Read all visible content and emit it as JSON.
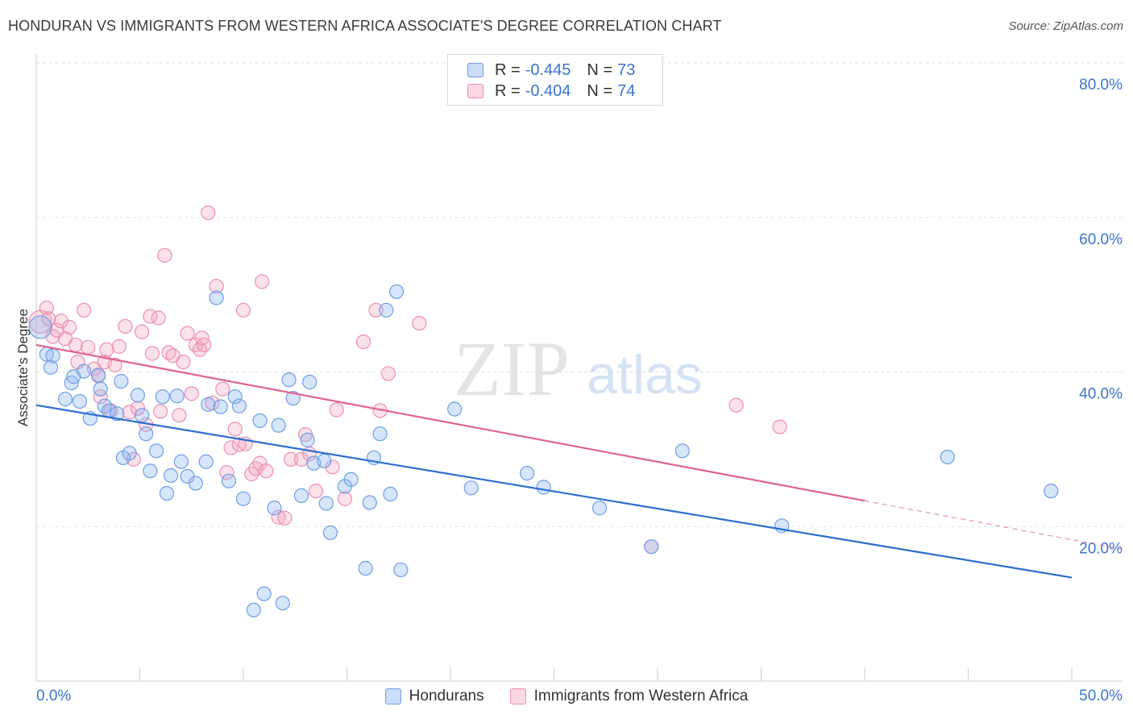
{
  "title": "HONDURAN VS IMMIGRANTS FROM WESTERN AFRICA ASSOCIATE'S DEGREE CORRELATION CHART",
  "source": "Source: ZipAtlas.com",
  "watermark": {
    "zip": "ZIP",
    "atlas": "atlas"
  },
  "legend": {
    "rows": [
      {
        "r_label": "R =",
        "r_value": "-0.445",
        "n_label": "N =",
        "n_value": "73",
        "color": "#8ab4f0"
      },
      {
        "r_label": "R =",
        "r_value": "-0.404",
        "n_label": "N =",
        "n_value": "74",
        "color": "#f4a9c0"
      }
    ]
  },
  "bottom_legend": [
    {
      "label": "Hondurans",
      "color": "#8ab4f0"
    },
    {
      "label": "Immigrants from Western Africa",
      "color": "#f4a9c0"
    }
  ],
  "colors": {
    "blue_fill": "rgba(138,180,240,0.35)",
    "blue_stroke": "#6d9ee6",
    "blue_line": "#2a6fd3",
    "pink_fill": "rgba(244,169,192,0.35)",
    "pink_stroke": "#ec8fae",
    "pink_line": "#e0628f",
    "axis_text": "#3a74d0",
    "grid": "#e2e2e2"
  },
  "chart_data": {
    "type": "scatter",
    "title": "HONDURAN VS IMMIGRANTS FROM WESTERN AFRICA ASSOCIATE'S DEGREE CORRELATION CHART",
    "xlabel": "",
    "ylabel": "Associate's Degree",
    "xlim": [
      0,
      50
    ],
    "ylim": [
      0,
      80
    ],
    "x_tick_labels": [
      "0.0%",
      "50.0%"
    ],
    "y_ticks": [
      20,
      40,
      60,
      80
    ],
    "y_tick_labels": [
      "20.0%",
      "40.0%",
      "60.0%",
      "80.0%"
    ],
    "x_minor_ticks": [
      0,
      5,
      10,
      15,
      20,
      25,
      30,
      35,
      40,
      45,
      50
    ],
    "grid": true,
    "legend_position": "top-center",
    "series": [
      {
        "name": "Hondurans",
        "trend": {
          "x0": 0,
          "y0": 35.7,
          "x1": 50,
          "y1": 13.4,
          "dashed_from": null
        },
        "points": [
          [
            0.2,
            45.8
          ],
          [
            0.5,
            42.3
          ],
          [
            0.7,
            40.6
          ],
          [
            0.8,
            42.1
          ],
          [
            1.4,
            36.5
          ],
          [
            1.7,
            38.6
          ],
          [
            1.8,
            39.4
          ],
          [
            2.1,
            36.2
          ],
          [
            2.3,
            40.1
          ],
          [
            2.6,
            34.0
          ],
          [
            3.0,
            39.6
          ],
          [
            3.1,
            37.8
          ],
          [
            3.3,
            35.6
          ],
          [
            3.5,
            35.0
          ],
          [
            3.9,
            34.6
          ],
          [
            4.1,
            38.8
          ],
          [
            4.2,
            28.9
          ],
          [
            4.5,
            29.5
          ],
          [
            4.9,
            37.0
          ],
          [
            5.1,
            34.4
          ],
          [
            5.3,
            32.0
          ],
          [
            5.5,
            27.2
          ],
          [
            5.8,
            29.8
          ],
          [
            6.1,
            36.8
          ],
          [
            6.3,
            24.3
          ],
          [
            6.5,
            26.6
          ],
          [
            6.8,
            36.9
          ],
          [
            7.0,
            28.4
          ],
          [
            7.3,
            26.5
          ],
          [
            7.7,
            25.6
          ],
          [
            8.2,
            28.4
          ],
          [
            8.3,
            35.8
          ],
          [
            8.7,
            49.6
          ],
          [
            8.9,
            35.5
          ],
          [
            9.3,
            25.9
          ],
          [
            9.6,
            36.8
          ],
          [
            9.8,
            35.6
          ],
          [
            10.0,
            23.6
          ],
          [
            10.5,
            9.2
          ],
          [
            10.8,
            33.7
          ],
          [
            11.0,
            11.3
          ],
          [
            11.5,
            22.4
          ],
          [
            11.7,
            33.1
          ],
          [
            11.9,
            10.1
          ],
          [
            12.2,
            39.0
          ],
          [
            12.4,
            36.6
          ],
          [
            12.8,
            24.0
          ],
          [
            13.1,
            31.2
          ],
          [
            13.2,
            38.7
          ],
          [
            13.4,
            28.2
          ],
          [
            13.9,
            28.5
          ],
          [
            14.0,
            23.0
          ],
          [
            14.2,
            19.2
          ],
          [
            14.9,
            25.2
          ],
          [
            15.2,
            26.1
          ],
          [
            15.9,
            14.6
          ],
          [
            16.1,
            23.1
          ],
          [
            16.3,
            28.9
          ],
          [
            16.6,
            32.0
          ],
          [
            16.9,
            48.0
          ],
          [
            17.1,
            24.2
          ],
          [
            17.4,
            50.4
          ],
          [
            17.6,
            14.4
          ],
          [
            20.2,
            35.2
          ],
          [
            21.0,
            25.0
          ],
          [
            23.7,
            26.9
          ],
          [
            24.5,
            25.1
          ],
          [
            27.2,
            22.4
          ],
          [
            29.7,
            17.4
          ],
          [
            31.2,
            29.8
          ],
          [
            36.0,
            20.1
          ],
          [
            44.0,
            29.0
          ],
          [
            49.0,
            24.6
          ]
        ]
      },
      {
        "name": "Immigrants from Western Africa",
        "trend": {
          "x0": 0,
          "y0": 43.5,
          "x1": 50,
          "y1": 18.3,
          "dashed_from": 40.0
        },
        "points": [
          [
            0.2,
            46.5
          ],
          [
            0.5,
            48.3
          ],
          [
            0.6,
            46.9
          ],
          [
            0.8,
            44.6
          ],
          [
            1.0,
            45.4
          ],
          [
            1.2,
            46.6
          ],
          [
            1.4,
            44.3
          ],
          [
            1.6,
            45.8
          ],
          [
            1.9,
            43.5
          ],
          [
            2.0,
            41.3
          ],
          [
            2.3,
            48.0
          ],
          [
            2.5,
            43.2
          ],
          [
            2.8,
            40.4
          ],
          [
            3.0,
            39.5
          ],
          [
            3.1,
            36.8
          ],
          [
            3.3,
            41.3
          ],
          [
            3.4,
            42.9
          ],
          [
            3.6,
            35.0
          ],
          [
            3.8,
            40.9
          ],
          [
            4.0,
            43.3
          ],
          [
            4.3,
            45.9
          ],
          [
            4.5,
            34.8
          ],
          [
            4.7,
            28.7
          ],
          [
            4.9,
            35.3
          ],
          [
            5.1,
            45.2
          ],
          [
            5.3,
            33.2
          ],
          [
            5.5,
            47.2
          ],
          [
            5.6,
            42.4
          ],
          [
            5.9,
            47.0
          ],
          [
            6.0,
            34.9
          ],
          [
            6.2,
            55.1
          ],
          [
            6.4,
            42.5
          ],
          [
            6.6,
            42.1
          ],
          [
            6.9,
            34.4
          ],
          [
            7.1,
            41.3
          ],
          [
            7.3,
            45.0
          ],
          [
            7.5,
            37.2
          ],
          [
            7.7,
            43.5
          ],
          [
            7.9,
            42.9
          ],
          [
            8.0,
            44.4
          ],
          [
            8.1,
            43.5
          ],
          [
            8.3,
            60.6
          ],
          [
            8.5,
            36.0
          ],
          [
            8.7,
            51.1
          ],
          [
            9.0,
            37.8
          ],
          [
            9.2,
            27.0
          ],
          [
            9.4,
            30.2
          ],
          [
            9.6,
            32.6
          ],
          [
            9.8,
            30.6
          ],
          [
            10.0,
            48.0
          ],
          [
            10.1,
            30.7
          ],
          [
            10.4,
            26.8
          ],
          [
            10.6,
            27.5
          ],
          [
            10.8,
            28.2
          ],
          [
            10.9,
            51.7
          ],
          [
            11.1,
            27.2
          ],
          [
            11.7,
            21.2
          ],
          [
            12.0,
            21.1
          ],
          [
            12.3,
            28.7
          ],
          [
            12.8,
            28.7
          ],
          [
            13.0,
            31.9
          ],
          [
            13.2,
            29.4
          ],
          [
            13.5,
            24.6
          ],
          [
            14.3,
            27.7
          ],
          [
            14.5,
            35.1
          ],
          [
            14.9,
            23.6
          ],
          [
            15.8,
            43.9
          ],
          [
            16.4,
            48.0
          ],
          [
            16.6,
            35.0
          ],
          [
            17.0,
            39.8
          ],
          [
            18.5,
            46.3
          ],
          [
            29.7,
            17.4
          ],
          [
            33.8,
            35.7
          ],
          [
            35.9,
            32.9
          ]
        ]
      }
    ]
  }
}
